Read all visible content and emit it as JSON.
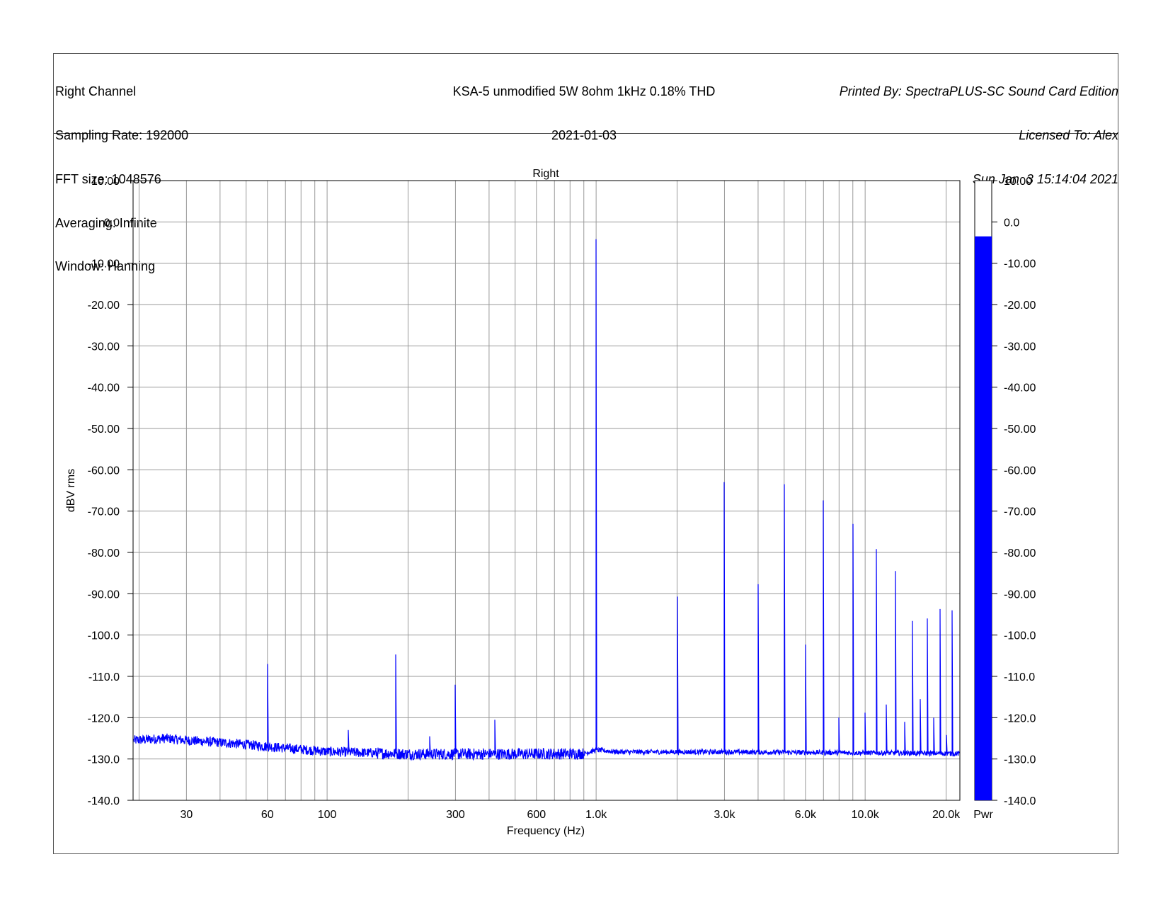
{
  "header": {
    "left": [
      "Right Channel",
      "Sampling Rate: 192000",
      "FFT size: 1048576",
      "Averaging: Infinite",
      "Window: Hanning"
    ],
    "center": [
      "KSA-5 unmodified 5W 8ohm 1kHz 0.18% THD",
      "2021-01-03"
    ],
    "right": [
      "Printed By: SpectraPLUS-SC Sound Card Edition",
      "Licensed To: Alex",
      "Sun Jan  3 15:14:04 2021"
    ]
  },
  "chart_data": {
    "type": "line",
    "title": "Right",
    "xlabel": "Frequency (Hz)",
    "ylabel": "dBV rms",
    "xscale": "log",
    "xlim": [
      19,
      22500
    ],
    "ylim": [
      -140,
      10
    ],
    "grid": true,
    "line_color": "#0000ff",
    "xticks": [
      {
        "value": 30,
        "label": "30"
      },
      {
        "value": 60,
        "label": "60"
      },
      {
        "value": 100,
        "label": "100"
      },
      {
        "value": 300,
        "label": "300"
      },
      {
        "value": 600,
        "label": "600"
      },
      {
        "value": 1000,
        "label": "1.0k"
      },
      {
        "value": 3000,
        "label": "3.0k"
      },
      {
        "value": 6000,
        "label": "6.0k"
      },
      {
        "value": 10000,
        "label": "10.0k"
      },
      {
        "value": 20000,
        "label": "20.0k"
      }
    ],
    "yticks": [
      {
        "value": 10,
        "label": "10.00"
      },
      {
        "value": 0,
        "label": "0.0"
      },
      {
        "value": -10,
        "label": "-10.00"
      },
      {
        "value": -20,
        "label": "-20.00"
      },
      {
        "value": -30,
        "label": "-30.00"
      },
      {
        "value": -40,
        "label": "-40.00"
      },
      {
        "value": -50,
        "label": "-50.00"
      },
      {
        "value": -60,
        "label": "-60.00"
      },
      {
        "value": -70,
        "label": "-70.00"
      },
      {
        "value": -80,
        "label": "-80.00"
      },
      {
        "value": -90,
        "label": "-90.00"
      },
      {
        "value": -100,
        "label": "-100.0"
      },
      {
        "value": -110,
        "label": "-110.0"
      },
      {
        "value": -120,
        "label": "-120.0"
      },
      {
        "value": -130,
        "label": "-130.0"
      },
      {
        "value": -140,
        "label": "-140.0"
      }
    ],
    "noise_floor": [
      [
        19,
        -125.5
      ],
      [
        25,
        -125
      ],
      [
        30,
        -125.5
      ],
      [
        40,
        -126
      ],
      [
        50,
        -126.5
      ],
      [
        60,
        -127
      ],
      [
        100,
        -128.2
      ],
      [
        200,
        -128.8
      ],
      [
        400,
        -128.8
      ],
      [
        900,
        -128.7
      ],
      [
        1000,
        -127.8
      ],
      [
        1200,
        -128.3
      ],
      [
        3000,
        -128.3
      ],
      [
        10000,
        -128.5
      ],
      [
        22500,
        -128.7
      ]
    ],
    "peaks": [
      {
        "x": 60,
        "y": -107
      },
      {
        "x": 120,
        "y": -123
      },
      {
        "x": 180,
        "y": -104.7
      },
      {
        "x": 240,
        "y": -124.5
      },
      {
        "x": 300,
        "y": -112
      },
      {
        "x": 420,
        "y": -120.5
      },
      {
        "x": 1000,
        "y": -4.2
      },
      {
        "x": 2000,
        "y": -90.7
      },
      {
        "x": 3000,
        "y": -63
      },
      {
        "x": 4000,
        "y": -87.7
      },
      {
        "x": 5000,
        "y": -63.5
      },
      {
        "x": 6000,
        "y": -102.3
      },
      {
        "x": 7000,
        "y": -67.4
      },
      {
        "x": 8000,
        "y": -120
      },
      {
        "x": 9000,
        "y": -73.1
      },
      {
        "x": 10000,
        "y": -118.8
      },
      {
        "x": 11000,
        "y": -79.2
      },
      {
        "x": 12000,
        "y": -116.8
      },
      {
        "x": 13000,
        "y": -84.5
      },
      {
        "x": 14000,
        "y": -121
      },
      {
        "x": 15000,
        "y": -96.6
      },
      {
        "x": 16000,
        "y": -115.5
      },
      {
        "x": 17000,
        "y": -96
      },
      {
        "x": 18000,
        "y": -120
      },
      {
        "x": 19000,
        "y": -93.7
      },
      {
        "x": 20000,
        "y": -124.2
      },
      {
        "x": 21000,
        "y": -94
      }
    ],
    "meter": {
      "value": -3.5,
      "label": "Pwr",
      "color": "#0000ff"
    }
  }
}
